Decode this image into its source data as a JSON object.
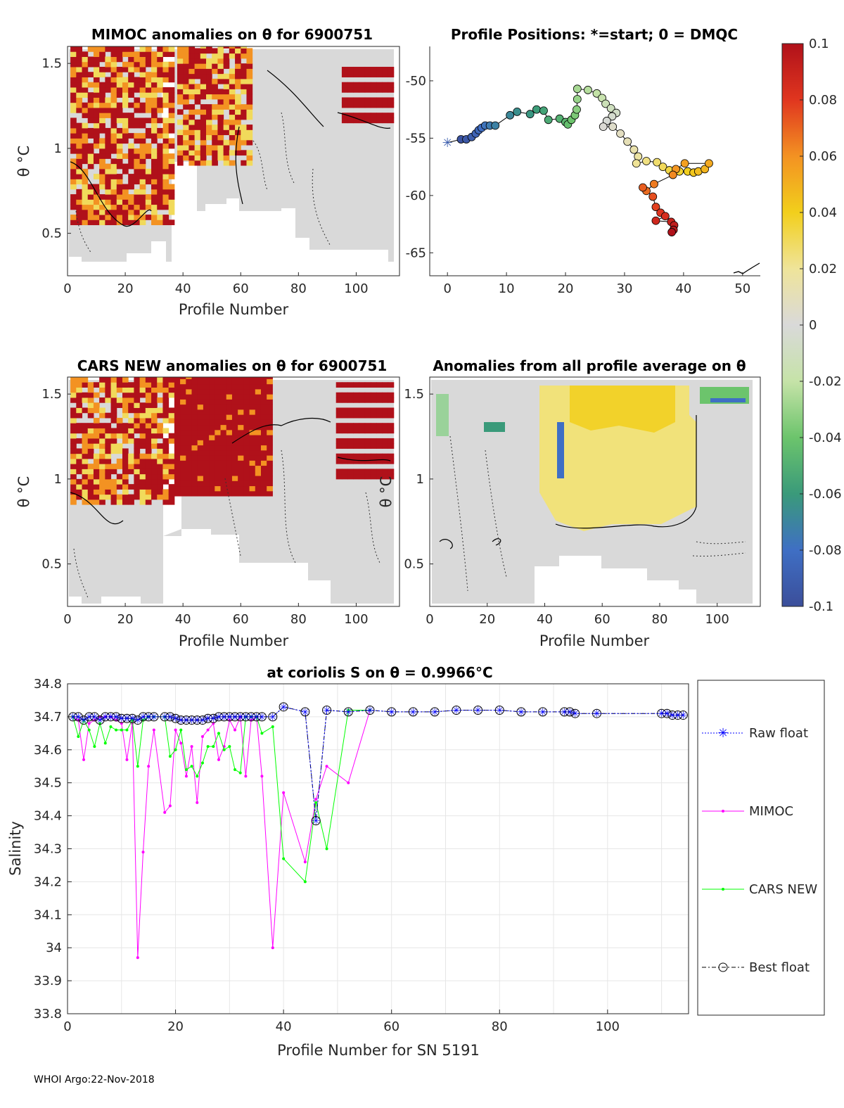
{
  "footer": "WHOI Argo:22-Nov-2018",
  "colors": {
    "raw_float": "#0000ff",
    "mimoc": "#ff00ff",
    "cars_new": "#00ff00",
    "best_float": "#000000",
    "grid": "#e6e6e6",
    "missing": "#ffffff",
    "background_field": "#d9d9d9"
  },
  "chart_data": [
    {
      "id": "mimoc-panel",
      "type": "heatmap",
      "title": "MIMOC anomalies on θ  for 6900751",
      "xlabel": "Profile Number",
      "ylabel": "θ °C",
      "xlim": [
        0,
        115
      ],
      "ylim": [
        0.25,
        1.6
      ],
      "xticks": [
        0,
        20,
        40,
        60,
        80,
        100
      ],
      "yticks": [
        0.5,
        1,
        1.5
      ],
      "clim": [
        -0.1,
        0.1
      ],
      "regions": [
        {
          "x": [
            1,
            36
          ],
          "y": [
            0.55,
            1.6
          ],
          "anomaly": 0.1,
          "pattern": "mixed-red-orange-yellow"
        },
        {
          "x": [
            38,
            63
          ],
          "y": [
            0.9,
            1.6
          ],
          "anomaly": 0.1,
          "pattern": "mixed-red-orange-yellow"
        },
        {
          "x": [
            95,
            112
          ],
          "y": [
            1.15,
            1.5
          ],
          "anomaly": 0.1,
          "pattern": "red-white-stripes"
        }
      ]
    },
    {
      "id": "positions-panel",
      "type": "scatter",
      "title": "Profile Positions: *=start; 0 = DMQC",
      "xlim": [
        -3,
        53
      ],
      "ylim": [
        -67,
        -47
      ],
      "xticks": [
        0,
        10,
        20,
        30,
        40,
        50
      ],
      "yticks": [
        -50,
        -55,
        -60,
        -65
      ],
      "start_marker": "*",
      "points": [
        [
          0,
          -55.4
        ],
        [
          2.3,
          -55.1
        ],
        [
          3.2,
          -55.1
        ],
        [
          4.1,
          -54.9
        ],
        [
          4.8,
          -54.6
        ],
        [
          5.3,
          -54.3
        ],
        [
          5.8,
          -54.1
        ],
        [
          6.4,
          -53.9
        ],
        [
          7.2,
          -53.9
        ],
        [
          8.1,
          -53.9
        ],
        [
          10.6,
          -53.0
        ],
        [
          11.8,
          -52.7
        ],
        [
          14.0,
          -52.9
        ],
        [
          15.1,
          -52.5
        ],
        [
          16.3,
          -52.6
        ],
        [
          17.1,
          -53.4
        ],
        [
          19.0,
          -53.3
        ],
        [
          20.0,
          -53.6
        ],
        [
          20.4,
          -53.8
        ],
        [
          21.0,
          -53.4
        ],
        [
          21.6,
          -53.0
        ],
        [
          21.9,
          -52.5
        ],
        [
          22.0,
          -51.6
        ],
        [
          22.0,
          -50.7
        ],
        [
          23.8,
          -50.8
        ],
        [
          25.3,
          -51.1
        ],
        [
          26.2,
          -51.5
        ],
        [
          26.8,
          -52.0
        ],
        [
          27.7,
          -52.4
        ],
        [
          28.6,
          -52.8
        ],
        [
          27.9,
          -53.1
        ],
        [
          27.0,
          -53.5
        ],
        [
          26.4,
          -54.0
        ],
        [
          28.0,
          -54.0
        ],
        [
          29.3,
          -54.6
        ],
        [
          30.5,
          -55.3
        ],
        [
          31.6,
          -56.0
        ],
        [
          32.3,
          -56.6
        ],
        [
          32.0,
          -57.2
        ],
        [
          33.7,
          -57.0
        ],
        [
          35.5,
          -57.1
        ],
        [
          36.5,
          -57.5
        ],
        [
          37.6,
          -57.8
        ],
        [
          39.3,
          -57.9
        ],
        [
          40.7,
          -57.9
        ],
        [
          41.7,
          -58.0
        ],
        [
          42.5,
          -57.9
        ],
        [
          43.6,
          -57.7
        ],
        [
          44.3,
          -57.2
        ],
        [
          40.2,
          -57.2
        ],
        [
          38.7,
          -57.7
        ],
        [
          38.2,
          -58.2
        ],
        [
          35.0,
          -59.0
        ],
        [
          33.7,
          -59.6
        ],
        [
          33.1,
          -59.3
        ],
        [
          34.8,
          -60.1
        ],
        [
          35.3,
          -61.0
        ],
        [
          36.1,
          -61.5
        ],
        [
          36.9,
          -61.8
        ],
        [
          35.3,
          -62.2
        ],
        [
          37.9,
          -62.3
        ],
        [
          38.4,
          -62.6
        ],
        [
          38.3,
          -63.0
        ],
        [
          38.0,
          -63.2
        ]
      ]
    },
    {
      "id": "cars-panel",
      "type": "heatmap",
      "title": "CARS NEW anomalies on θ for 6900751",
      "xlabel": "Profile Number",
      "ylabel": "θ °C",
      "xlim": [
        0,
        115
      ],
      "ylim": [
        0.25,
        1.6
      ],
      "xticks": [
        0,
        20,
        40,
        60,
        80,
        100
      ],
      "yticks": [
        0.5,
        1,
        1.5
      ],
      "clim": [
        -0.1,
        0.1
      ],
      "regions": [
        {
          "x": [
            1,
            36
          ],
          "y": [
            0.85,
            1.6
          ],
          "anomaly": 0.1,
          "pattern": "mixed-red-orange-yellow"
        },
        {
          "x": [
            37,
            71
          ],
          "y": [
            0.9,
            1.6
          ],
          "anomaly": 0.1,
          "pattern": "solid-red"
        },
        {
          "x": [
            93,
            112
          ],
          "y": [
            1.0,
            1.55
          ],
          "anomaly": 0.1,
          "pattern": "red-white-stripes"
        }
      ]
    },
    {
      "id": "average-panel",
      "type": "heatmap",
      "title": "Anomalies from all profile average on θ",
      "xlabel": "Profile Number",
      "ylabel": "θ °C",
      "xlim": [
        0,
        115
      ],
      "ylim": [
        0.25,
        1.6
      ],
      "xticks": [
        0,
        20,
        40,
        60,
        80,
        100
      ],
      "yticks": [
        0.5,
        1,
        1.5
      ],
      "clim": [
        -0.1,
        0.1
      ],
      "regions": [
        {
          "x": [
            40,
            92
          ],
          "y": [
            0.7,
            1.55
          ],
          "anomaly": 0.035,
          "pattern": "smooth-yellow"
        },
        {
          "x": [
            43,
            46
          ],
          "y": [
            1.0,
            1.3
          ],
          "anomaly": -0.09,
          "pattern": "blue-streak"
        },
        {
          "x": [
            2,
            30
          ],
          "y": [
            1.05,
            1.55
          ],
          "anomaly": -0.04,
          "pattern": "scattered-green-blue"
        }
      ]
    },
    {
      "id": "colorbar",
      "type": "colorbar",
      "clim": [
        -0.1,
        0.1
      ],
      "tick_labels": [
        "0.1",
        "0.08",
        "0.06",
        "0.04",
        "0.02",
        "0",
        "-0.02",
        "-0.04",
        "-0.06",
        "-0.08",
        "-0.1"
      ]
    },
    {
      "id": "salinity-panel",
      "type": "line",
      "title": "at coriolis S on θ = 0.9966°C",
      "xlabel": "Profile Number for SN 5191",
      "ylabel": "Salinity",
      "xlim": [
        0,
        115
      ],
      "ylim": [
        33.8,
        34.8
      ],
      "xticks": [
        0,
        20,
        40,
        60,
        80,
        100
      ],
      "yticks": [
        33.8,
        33.9,
        34,
        34.1,
        34.2,
        34.3,
        34.4,
        34.5,
        34.6,
        34.7,
        34.8
      ],
      "legend": [
        "Raw float",
        "MIMOC",
        "CARS NEW",
        "Best float"
      ],
      "series": [
        {
          "name": "Raw float",
          "x": [
            1,
            2,
            3,
            4,
            5,
            6,
            7,
            8,
            9,
            10,
            11,
            12,
            13,
            14,
            15,
            16,
            18,
            19,
            20,
            21,
            22,
            23,
            24,
            25,
            26,
            27,
            28,
            29,
            30,
            31,
            32,
            33,
            34,
            35,
            36,
            38,
            40,
            44,
            46,
            48,
            52,
            56,
            60,
            64,
            68,
            72,
            76,
            80,
            84,
            88,
            92,
            93,
            94,
            98,
            110,
            111,
            112,
            113,
            114
          ],
          "y": [
            34.7,
            34.7,
            34.69,
            34.7,
            34.7,
            34.69,
            34.7,
            34.7,
            34.7,
            34.695,
            34.695,
            34.695,
            34.69,
            34.7,
            34.7,
            34.7,
            34.7,
            34.7,
            34.695,
            34.69,
            34.69,
            34.69,
            34.69,
            34.69,
            34.695,
            34.695,
            34.7,
            34.7,
            34.7,
            34.7,
            34.7,
            34.7,
            34.7,
            34.7,
            34.7,
            34.7,
            34.73,
            34.715,
            34.385,
            34.72,
            34.715,
            34.72,
            34.715,
            34.715,
            34.715,
            34.72,
            34.72,
            34.72,
            34.715,
            34.715,
            34.715,
            34.715,
            34.71,
            34.71,
            34.71,
            34.71,
            34.705,
            34.705,
            34.705
          ]
        },
        {
          "name": "MIMOC",
          "x": [
            1,
            2,
            3,
            4,
            5,
            6,
            7,
            8,
            9,
            10,
            11,
            12,
            13,
            14,
            15,
            16,
            18,
            19,
            20,
            21,
            22,
            23,
            24,
            25,
            26,
            27,
            28,
            29,
            30,
            31,
            32,
            33,
            34,
            35,
            36,
            38,
            40,
            44,
            46,
            48,
            52,
            56
          ],
          "y": [
            34.7,
            34.69,
            34.57,
            34.68,
            34.69,
            34.7,
            34.7,
            34.7,
            34.69,
            34.68,
            34.57,
            34.68,
            33.97,
            34.29,
            34.55,
            34.66,
            34.41,
            34.43,
            34.66,
            34.62,
            34.52,
            34.61,
            34.44,
            34.64,
            34.66,
            34.68,
            34.57,
            34.61,
            34.69,
            34.66,
            34.7,
            34.52,
            34.69,
            34.7,
            34.52,
            34.0,
            34.47,
            34.26,
            34.45,
            34.55,
            34.5,
            34.72
          ]
        },
        {
          "name": "CARS NEW",
          "x": [
            1,
            2,
            3,
            4,
            5,
            6,
            7,
            8,
            9,
            10,
            11,
            12,
            13,
            14,
            15,
            16,
            18,
            19,
            20,
            21,
            22,
            23,
            24,
            25,
            26,
            27,
            28,
            29,
            30,
            31,
            32,
            33,
            34,
            35,
            36,
            38,
            40,
            44,
            46,
            48,
            52,
            56
          ],
          "y": [
            34.7,
            34.64,
            34.69,
            34.66,
            34.61,
            34.68,
            34.62,
            34.67,
            34.66,
            34.66,
            34.66,
            34.69,
            34.55,
            34.69,
            34.7,
            34.7,
            34.7,
            34.58,
            34.6,
            34.66,
            34.54,
            34.55,
            34.52,
            34.56,
            34.61,
            34.61,
            34.65,
            34.6,
            34.61,
            34.54,
            34.53,
            34.7,
            34.7,
            34.7,
            34.65,
            34.67,
            34.27,
            34.2,
            34.44,
            34.3,
            34.72,
            34.72
          ]
        },
        {
          "name": "Best float",
          "x": [
            1,
            2,
            3,
            4,
            5,
            6,
            7,
            8,
            9,
            10,
            11,
            12,
            13,
            14,
            15,
            16,
            18,
            19,
            20,
            21,
            22,
            23,
            24,
            25,
            26,
            27,
            28,
            29,
            30,
            31,
            32,
            33,
            34,
            35,
            36,
            38,
            40,
            44,
            46,
            48,
            52,
            56,
            60,
            64,
            68,
            72,
            76,
            80,
            84,
            88,
            92,
            93,
            94,
            98,
            110,
            111,
            112,
            113,
            114
          ],
          "y": [
            34.7,
            34.7,
            34.69,
            34.7,
            34.7,
            34.69,
            34.7,
            34.7,
            34.7,
            34.695,
            34.695,
            34.695,
            34.69,
            34.7,
            34.7,
            34.7,
            34.7,
            34.7,
            34.695,
            34.69,
            34.69,
            34.69,
            34.69,
            34.69,
            34.695,
            34.695,
            34.7,
            34.7,
            34.7,
            34.7,
            34.7,
            34.7,
            34.7,
            34.7,
            34.7,
            34.7,
            34.73,
            34.715,
            34.385,
            34.72,
            34.715,
            34.72,
            34.715,
            34.715,
            34.715,
            34.72,
            34.72,
            34.72,
            34.715,
            34.715,
            34.715,
            34.715,
            34.71,
            34.71,
            34.71,
            34.71,
            34.705,
            34.705,
            34.705
          ]
        }
      ]
    }
  ]
}
